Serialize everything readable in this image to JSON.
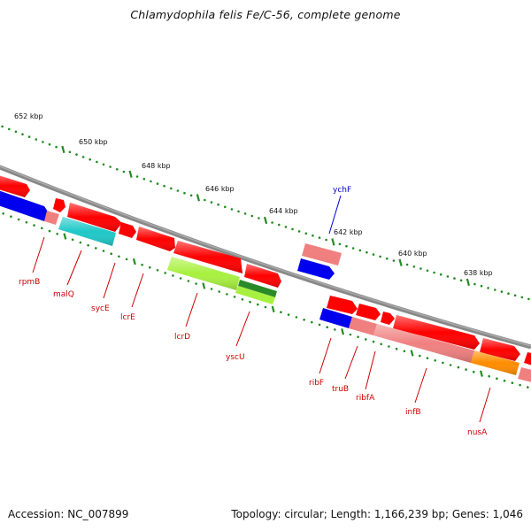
{
  "title": "Chlamydophila felis Fe/C-56, complete genome",
  "footer": {
    "accession": "Accession: NC_007899",
    "summary": "Topology: circular; Length: 1,166,239 bp; Genes: 1,046"
  },
  "ticks": [
    {
      "label": "652 kbp"
    },
    {
      "label": "650 kbp"
    },
    {
      "label": "648 kbp"
    },
    {
      "label": "646 kbp"
    },
    {
      "label": "644 kbp"
    },
    {
      "label": "642 kbp"
    },
    {
      "label": "640 kbp"
    },
    {
      "label": "638 kbp"
    }
  ],
  "gene_labels": [
    {
      "label": "ychF",
      "color": "#0000cc"
    },
    {
      "label": "rpmB",
      "color": "#cc0000"
    },
    {
      "label": "malQ",
      "color": "#cc0000"
    },
    {
      "label": "sycE",
      "color": "#cc0000"
    },
    {
      "label": "lcrE",
      "color": "#cc0000"
    },
    {
      "label": "lcrD",
      "color": "#cc0000"
    },
    {
      "label": "yscU",
      "color": "#cc0000"
    },
    {
      "label": "ribF",
      "color": "#cc0000"
    },
    {
      "label": "truB",
      "color": "#cc0000"
    },
    {
      "label": "ribfA",
      "color": "#cc0000"
    },
    {
      "label": "infB",
      "color": "#cc0000"
    },
    {
      "label": "nusA",
      "color": "#cc0000"
    }
  ],
  "colors": {
    "backbone": "#808080",
    "forward_gene": "#ff0000",
    "reverse_gene": "#0000ee",
    "pink_feature": "#f08080",
    "cyan_feature": "#20c8c8",
    "lime_feature": "#a8f040",
    "green_feature": "#2a8a2a",
    "orange_feature": "#ff8c00",
    "tick": "#228b22"
  }
}
